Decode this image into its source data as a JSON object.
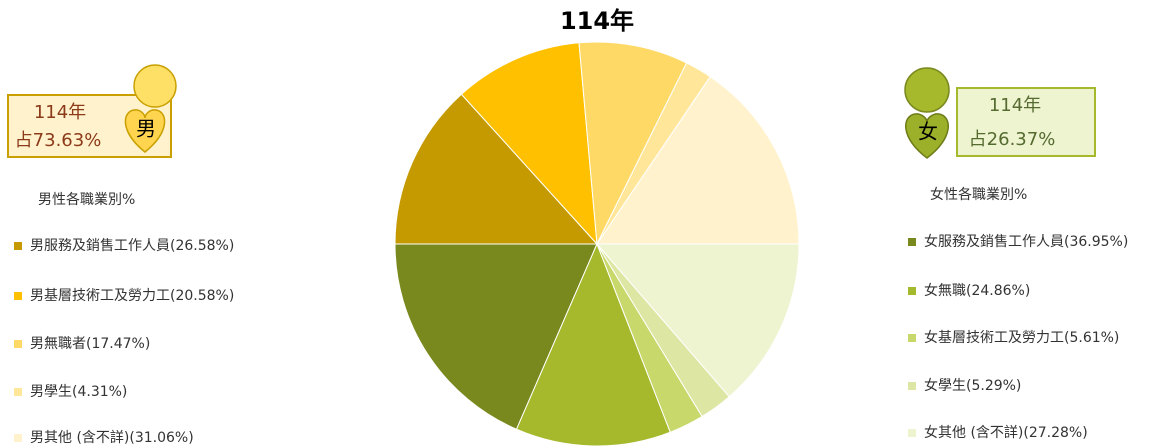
{
  "chart_data": {
    "type": "pie",
    "title": "114年",
    "series": [
      {
        "name": "男性各職業別%",
        "badge": {
          "year": "114年",
          "share": "占73.63%",
          "icon": "男"
        },
        "labels": [
          "男服務及銷售工作人員(26.58%)",
          "男基層技術工及勞力工(20.58%)",
          "男無職者(17.47%)",
          "男學生(4.31%)",
          "男其他 (含不詳)(31.06%)"
        ],
        "values": [
          26.58,
          20.58,
          17.47,
          4.31,
          31.06
        ],
        "colors": [
          "#C49A00",
          "#FFC000",
          "#FFD966",
          "#FFE699",
          "#FFF2CC"
        ]
      },
      {
        "name": "女性各職業別%",
        "badge": {
          "year": "114年",
          "share": "占26.37%",
          "icon": "女"
        },
        "labels": [
          "女服務及銷售工作人員(36.95%)",
          "女無職(24.86%)",
          "女基層技術工及勞力工(5.61%)",
          "女學生(5.29%)",
          "女其他 (含不詳)(27.28%)"
        ],
        "values": [
          36.95,
          24.86,
          5.61,
          5.29,
          27.28
        ],
        "colors": [
          "#7A891E",
          "#A6B82B",
          "#C9D86B",
          "#DDE6A3",
          "#EEF3D0"
        ]
      }
    ]
  }
}
